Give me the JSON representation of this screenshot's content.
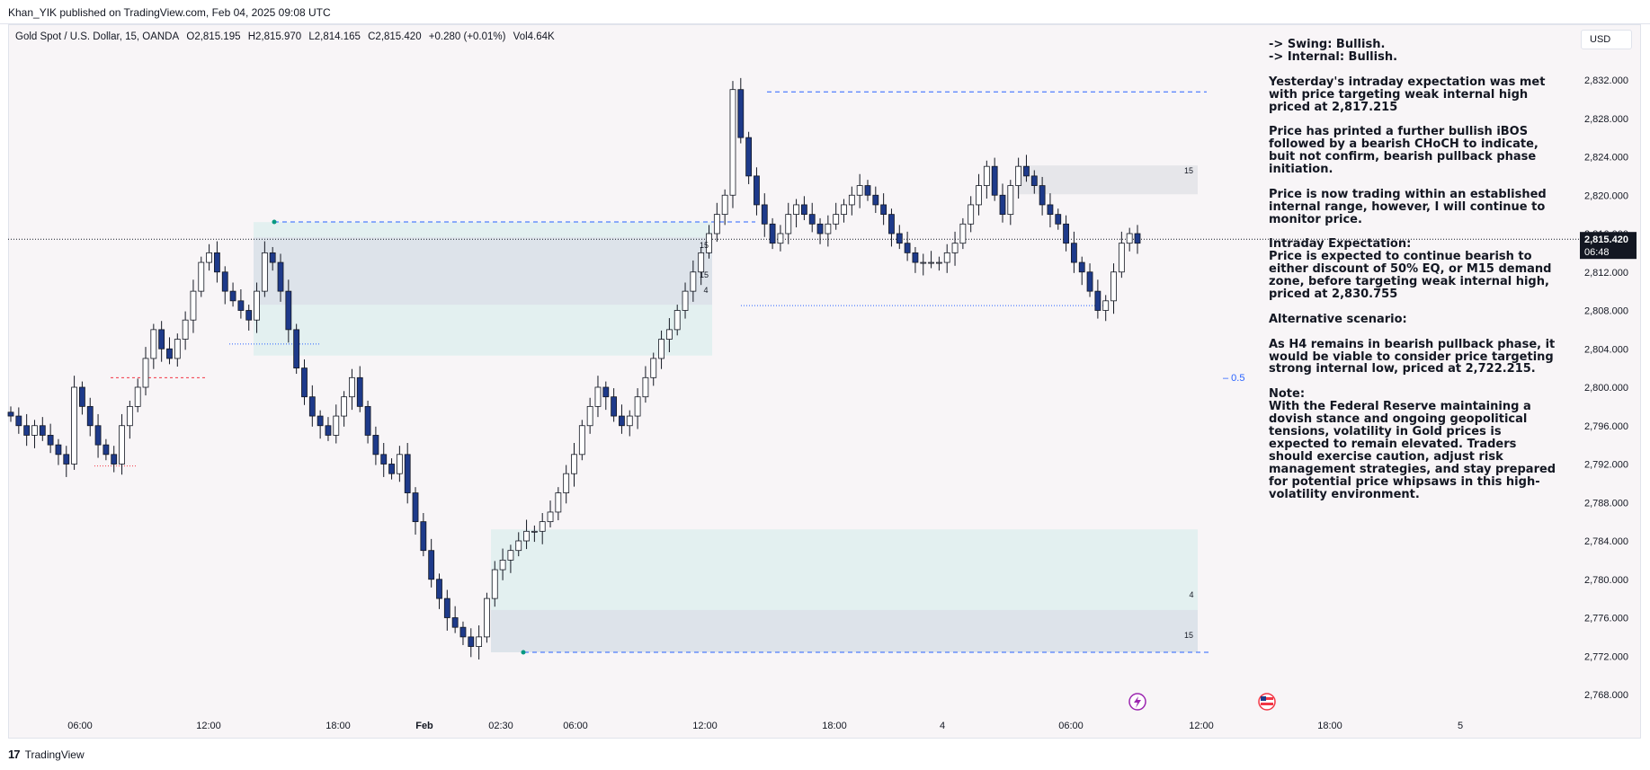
{
  "header": {
    "publisher_line": "Khan_YIK published on TradingView.com, Feb 04, 2025 09:08 UTC"
  },
  "legend": {
    "symbol": "Gold Spot / U.S. Dollar, 15, OANDA",
    "open": "O2,815.195",
    "high": "H2,815.970",
    "low": "L2,814.165",
    "close": "C2,815.420",
    "change": "+0.280 (+0.01%)",
    "volume": "Vol4.64K"
  },
  "currency_button": "USD",
  "price_axis": {
    "labels": [
      "2,832.000",
      "2,828.000",
      "2,824.000",
      "2,820.000",
      "2,816.000",
      "2,812.000",
      "2,808.000",
      "2,804.000",
      "2,800.000",
      "2,796.000",
      "2,792.000",
      "2,788.000",
      "2,784.000",
      "2,780.000",
      "2,776.000",
      "2,772.000",
      "2,768.000"
    ],
    "current_price": "2,815.420",
    "countdown": "06:48"
  },
  "time_axis": {
    "labels": [
      "06:00",
      "12:00",
      "18:00",
      "Feb",
      "02:30",
      "06:00",
      "12:00",
      "18:00",
      "4",
      "06:00",
      "12:00",
      "18:00",
      "5"
    ]
  },
  "annotations": {
    "zone_labels": [
      "15",
      "15",
      "4",
      "15",
      "4",
      "15"
    ],
    "fib_label": "0.5"
  },
  "commentary": {
    "swing": "-> Swing:  Bullish.",
    "internal": "-> Internal:  Bullish.",
    "p1": "Yesterday's intraday expectation was met with price targeting weak internal high priced at 2,817.215",
    "p2": "Price has printed a further bullish iBOS followed by a bearish CHoCH to indicate, buit not confirm, bearish pullback phase initiation.",
    "p3": "Price is now trading within an established internal range, however, I will continue to monitor price.",
    "intraday_heading": "Intraday Expectation:",
    "intraday_body": "Price is expected to continue bearish to either discount of 50% EQ, or M15 demand zone, before targeting weak internal high, priced at 2,830.755",
    "alt_heading": "Alternative scenario:",
    "alt_body": "As H4 remains in bearish pullback phase, it would be viable to consider price targeting strong internal low, priced at 2,722.215.",
    "note_heading": "Note:",
    "note_body": "With the Federal Reserve maintaining a dovish stance and ongoing geopolitical tensions, volatility in Gold prices is expected to remain elevated. Traders should exercise caution, adjust risk management strategies, and stay prepared for potential price whipsaws in this high-volatility environment."
  },
  "footer": {
    "brand": "TradingView",
    "logo_glyph": "17"
  },
  "colors": {
    "bull_candle": "#ffffff",
    "bear_candle": "#1e3a8a",
    "wick": "#131722",
    "dashed_line": "#2962ff",
    "zone_fill": "#e3f0f0",
    "zone_inner": "#dde3ea"
  },
  "chart_data": {
    "type": "candlestick",
    "title": "Gold Spot / U.S. Dollar, 15, OANDA",
    "timeframe": "15",
    "ylim": [
      2766,
      2834
    ],
    "y_ticks": [
      2832,
      2828,
      2824,
      2820,
      2816,
      2812,
      2808,
      2804,
      2800,
      2796,
      2792,
      2788,
      2784,
      2780,
      2776,
      2772,
      2768
    ],
    "x_tick_labels": [
      "06:00",
      "12:00",
      "18:00",
      "Feb",
      "02:30",
      "06:00",
      "12:00",
      "18:00",
      "4",
      "06:00",
      "12:00",
      "18:00",
      "5"
    ],
    "current_price": 2815.42,
    "key_levels": [
      {
        "name": "weak internal high",
        "value": 2830.755
      },
      {
        "name": "internal high (prior)",
        "value": 2817.215
      },
      {
        "name": "internal low",
        "value": 2772.4
      },
      {
        "name": "range low",
        "value": 2808.5
      },
      {
        "name": "equilibrium 0.5",
        "value": 2801.2
      }
    ],
    "zones": [
      {
        "label": "15",
        "top": 2817.2,
        "bottom": 2803.3
      },
      {
        "label": "4",
        "top": 2785.2,
        "bottom": 2772.4
      },
      {
        "label": "15",
        "top": 2823.1,
        "bottom": 2820.1
      }
    ],
    "close_path": [
      2797,
      2796,
      2795,
      2796,
      2795,
      2794,
      2793,
      2792,
      2800,
      2798,
      2796,
      2794,
      2793,
      2792,
      2796,
      2798,
      2800,
      2803,
      2806,
      2804,
      2803,
      2805,
      2807,
      2810,
      2813,
      2814,
      2812,
      2810,
      2809,
      2808,
      2807,
      2810,
      2814,
      2813,
      2810,
      2806,
      2802,
      2799,
      2797,
      2796,
      2795,
      2797,
      2799,
      2801,
      2798,
      2795,
      2793,
      2792,
      2791,
      2793,
      2789,
      2786,
      2783,
      2780,
      2778,
      2776,
      2775,
      2774,
      2773,
      2774,
      2778,
      2781,
      2782,
      2783,
      2784,
      2785,
      2785,
      2786,
      2787,
      2789,
      2791,
      2793,
      2796,
      2798,
      2800,
      2799,
      2797,
      2796,
      2797,
      2799,
      2801,
      2803,
      2805,
      2806,
      2808,
      2810,
      2812,
      2814,
      2816,
      2818,
      2820,
      2831,
      2826,
      2822,
      2819,
      2817,
      2815,
      2816,
      2818,
      2819,
      2818,
      2817,
      2816,
      2817,
      2818,
      2819,
      2820,
      2821,
      2820,
      2819,
      2818,
      2816,
      2815,
      2814,
      2813,
      2813,
      2813,
      2813,
      2814,
      2815,
      2817,
      2819,
      2821,
      2823,
      2820,
      2818,
      2821,
      2823,
      2822,
      2821,
      2819,
      2818,
      2817,
      2815,
      2813,
      2812,
      2810,
      2808,
      2809,
      2812,
      2815,
      2816,
      2815
    ]
  }
}
